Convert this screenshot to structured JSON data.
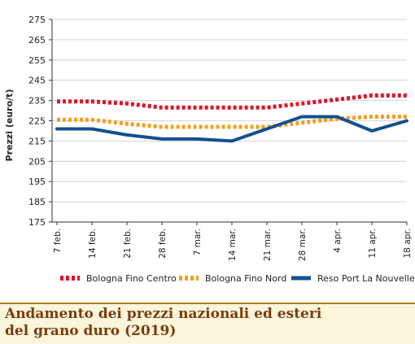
{
  "chart_data": {
    "type": "line",
    "title": "",
    "ylabel": "Prezzi (euro/t)",
    "xlabel": "",
    "ylim": [
      175,
      275
    ],
    "yticks": [
      175,
      185,
      195,
      205,
      215,
      225,
      235,
      245,
      255,
      265,
      275
    ],
    "ytick_labels": [
      "175",
      "185",
      "195",
      "205",
      "215",
      "225",
      "235",
      "245",
      "255",
      "265",
      "275"
    ],
    "grid": true,
    "legend_position": "bottom",
    "categories": [
      "7 feb.",
      "14 feb.",
      "21 feb.",
      "28 feb.",
      "7 mar.",
      "14 mar.",
      "21 mar.",
      "28 mar.",
      "4 apr.",
      "11 apr.",
      "18 apr."
    ],
    "series": [
      {
        "name": "Bologna Fino Centro",
        "color": "#d8172c",
        "style": "dotted",
        "values": [
          234.5,
          234.5,
          233.5,
          231.5,
          231.5,
          231.5,
          231.5,
          233.5,
          235.5,
          237.5,
          237.5
        ]
      },
      {
        "name": "Bologna Fino Nord",
        "color": "#f0a020",
        "style": "dotted",
        "values": [
          225.5,
          225.5,
          223.5,
          222,
          222,
          222,
          222,
          224,
          226,
          227,
          227
        ]
      },
      {
        "name": "Reso Port La Nouvelle",
        "color": "#13508f",
        "style": "solid",
        "values": [
          221,
          221,
          218,
          216,
          216,
          215,
          221,
          227,
          227,
          220,
          225
        ]
      }
    ]
  },
  "caption": {
    "line1": "Andamento dei prezzi nazionali ed esteri",
    "line2": "del grano duro (2019)"
  },
  "colors": {
    "caption_text": "#7a3d0d",
    "caption_bg": "#fbf5dc",
    "caption_border": "#a67c1e"
  }
}
